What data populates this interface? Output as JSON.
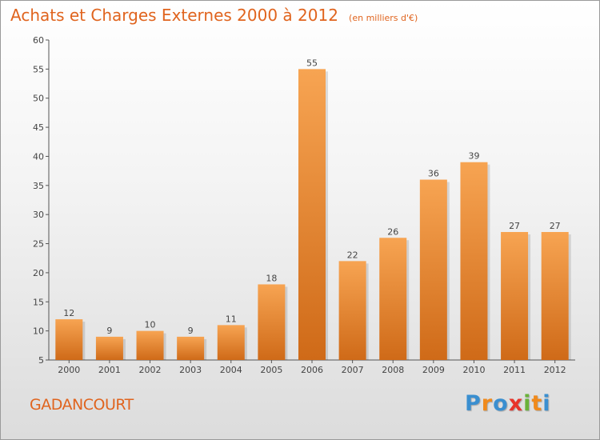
{
  "header": {
    "title": "Achats et Charges Externes 2000 à 2012",
    "subtitle": "(en milliers d'€)"
  },
  "footer": {
    "commune": "GADANCOURT",
    "logo_letters": [
      "P",
      "r",
      "o",
      "x",
      "i",
      "t",
      "i"
    ],
    "logo_colors": [
      "#3a8fd0",
      "#f08a1c",
      "#3a8fd0",
      "#e8342a",
      "#6ab23a",
      "#f08a1c",
      "#3a8fd0"
    ]
  },
  "colors": {
    "bar_top": "#f7a452",
    "bar_bottom": "#cf6a18",
    "accent": "#e0641e"
  },
  "chart_data": {
    "type": "bar",
    "categories": [
      "2000",
      "2001",
      "2002",
      "2003",
      "2004",
      "2005",
      "2006",
      "2007",
      "2008",
      "2009",
      "2010",
      "2011",
      "2012"
    ],
    "values": [
      12,
      9,
      10,
      9,
      11,
      18,
      55,
      22,
      26,
      36,
      39,
      27,
      27
    ],
    "ylim": [
      5,
      60
    ],
    "yticks": [
      5,
      10,
      15,
      20,
      25,
      30,
      35,
      40,
      45,
      50,
      55,
      60
    ],
    "grid": false,
    "data_labels": true
  }
}
